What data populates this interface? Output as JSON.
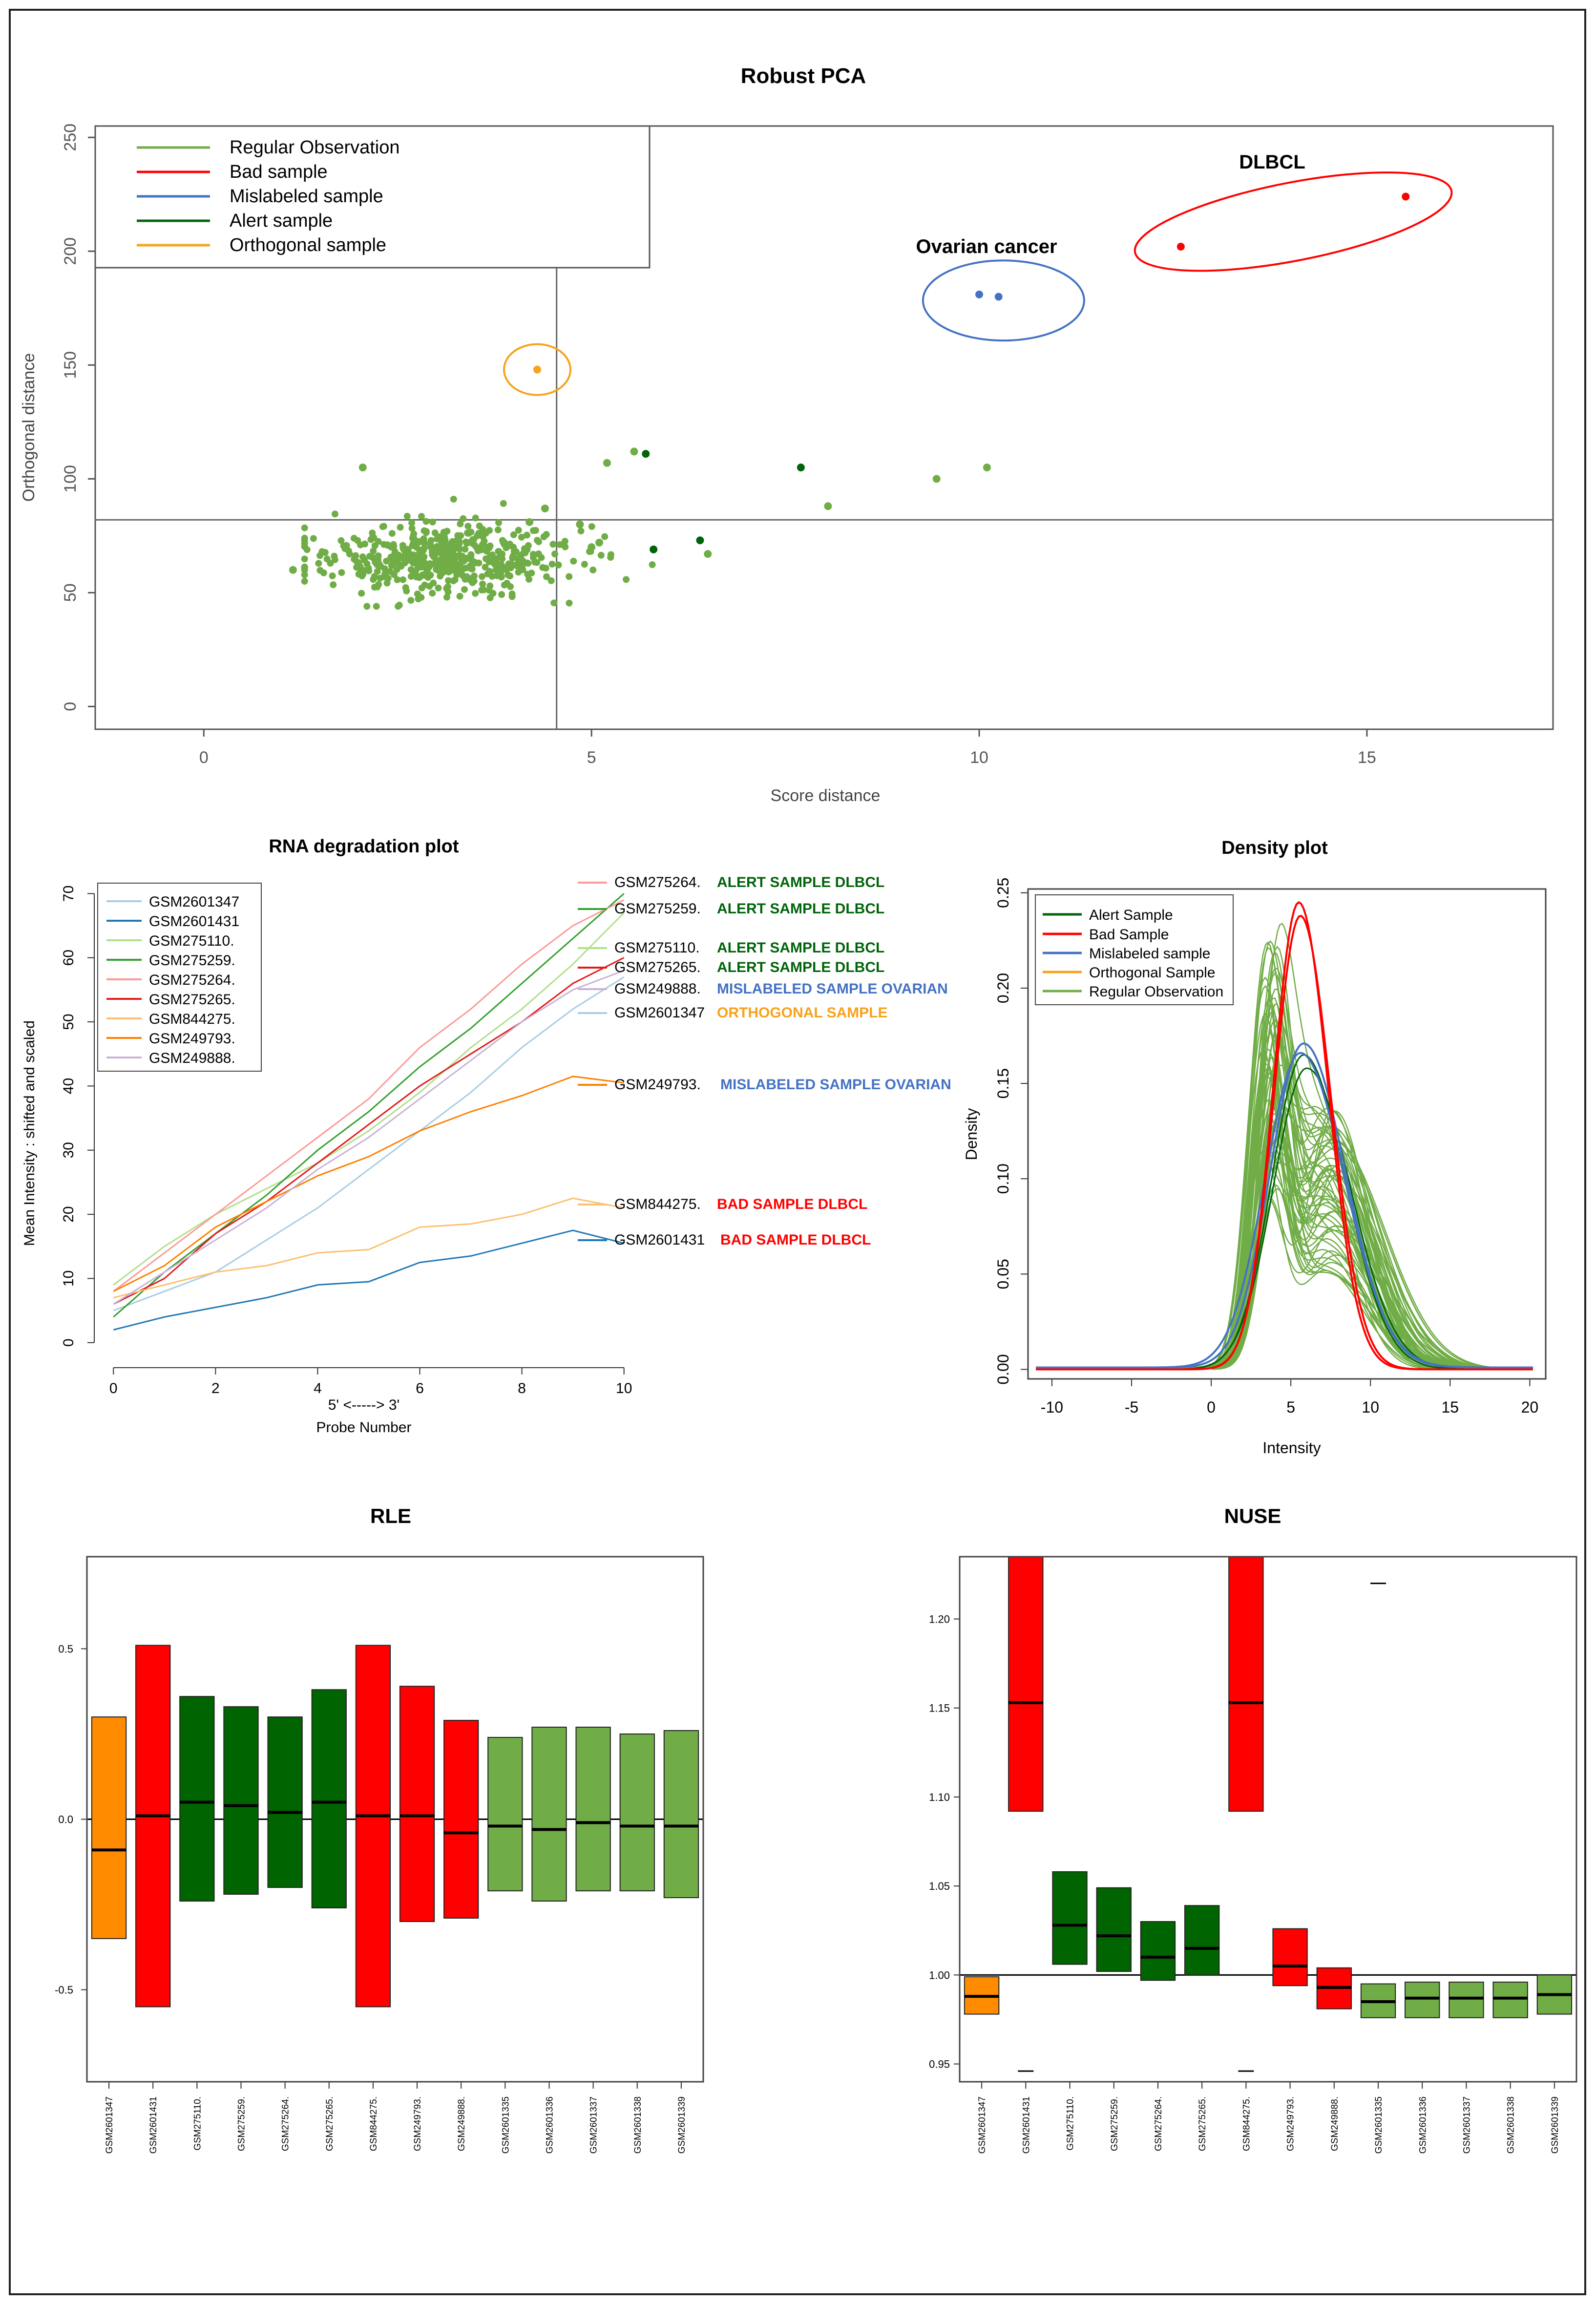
{
  "chart_data": [
    {
      "type": "scatter",
      "id": "pca",
      "title": "Robust PCA",
      "xlabel": "Score distance",
      "ylabel": "Orthogonal distance",
      "xlim": [
        -1.4,
        17.4
      ],
      "ylim": [
        -10,
        255
      ],
      "xticks": [
        0,
        5,
        10,
        15
      ],
      "yticks": [
        0,
        50,
        100,
        150,
        200,
        250
      ],
      "cutoff_x": 4.55,
      "cutoff_y": 82,
      "colors": {
        "regular": "#70ad47",
        "bad": "#ff0000",
        "mislabeled": "#4472c4",
        "alert": "#00640a",
        "orthogonal": "#f7a21b"
      },
      "legend": [
        "Regular Observation",
        "Bad sample",
        "Mislabeled sample",
        "Alert sample",
        "Orthogonal sample"
      ],
      "annotations": [
        "DLBCL",
        "Ovarian cancer"
      ],
      "bad_points": [
        [
          12.6,
          202
        ],
        [
          15.5,
          224
        ]
      ],
      "mislabeled_points": [
        [
          10.0,
          181
        ],
        [
          10.25,
          180
        ]
      ],
      "orthogonal_points": [
        [
          4.3,
          148
        ]
      ],
      "alert_points": [
        [
          5.7,
          111
        ],
        [
          7.7,
          105
        ],
        [
          5.8,
          69
        ],
        [
          6.4,
          73
        ]
      ],
      "regular_outliers": [
        [
          5.55,
          112
        ],
        [
          5.2,
          107
        ],
        [
          9.45,
          100
        ],
        [
          10.1,
          105
        ],
        [
          8.05,
          88
        ],
        [
          6.5,
          67
        ],
        [
          5.1,
          72
        ],
        [
          4.2,
          81
        ],
        [
          2.05,
          105
        ],
        [
          1.15,
          60
        ],
        [
          4.4,
          87
        ],
        [
          4.85,
          80
        ],
        [
          5.0,
          70
        ]
      ],
      "regular_cluster": {
        "center": [
          3.0,
          65
        ],
        "spread": [
          0.85,
          9
        ],
        "count": 520
      }
    },
    {
      "type": "line",
      "id": "rna",
      "title": "RNA degradation plot",
      "xlabel": "5' <-----> 3'\nProbe Number",
      "ylabel": "Mean Intensity : shifted and scaled",
      "xlim": [
        -0.5,
        10.5
      ],
      "ylim": [
        -2,
        73
      ],
      "xticks": [
        0,
        2,
        4,
        6,
        8,
        10
      ],
      "yticks": [
        0,
        10,
        20,
        30,
        40,
        50,
        60,
        70
      ],
      "x": [
        0,
        1,
        2,
        3,
        4,
        5,
        6,
        7,
        8,
        9,
        10
      ],
      "series": [
        {
          "name": "GSM2601347",
          "color": "#a6cee3",
          "values": [
            5,
            8,
            11,
            16,
            21,
            27,
            33,
            39,
            46,
            52,
            57
          ]
        },
        {
          "name": "GSM2601431",
          "color": "#1f78b4",
          "values": [
            2,
            4,
            5.5,
            7,
            9,
            9.5,
            12.5,
            13.5,
            15.5,
            17.5,
            15.5
          ]
        },
        {
          "name": "GSM275110.",
          "color": "#b2df8a",
          "values": [
            9,
            15,
            20,
            24,
            28,
            33,
            39,
            46,
            52,
            59,
            67
          ]
        },
        {
          "name": "GSM275259.",
          "color": "#33a02c",
          "values": [
            4,
            11,
            17,
            23,
            30,
            36,
            43,
            49,
            56,
            63,
            70
          ]
        },
        {
          "name": "GSM275264.",
          "color": "#fb9a99",
          "values": [
            8,
            14,
            20,
            26,
            32,
            38,
            46,
            52,
            59,
            65,
            69
          ]
        },
        {
          "name": "GSM275265.",
          "color": "#e31a1c",
          "values": [
            6,
            10,
            17,
            22,
            28,
            34,
            40,
            45,
            50,
            56,
            60
          ]
        },
        {
          "name": "GSM844275.",
          "color": "#fdbf6f",
          "values": [
            7,
            9,
            11,
            12,
            14,
            14.5,
            18,
            18.5,
            20,
            22.5,
            21
          ]
        },
        {
          "name": "GSM249793.",
          "color": "#ff7f00",
          "values": [
            8,
            12,
            18,
            22,
            26,
            29,
            33,
            36,
            38.5,
            41.5,
            40.5
          ]
        },
        {
          "name": "GSM249888.",
          "color": "#cab2d6",
          "values": [
            6,
            11,
            16,
            21,
            27,
            32,
            38,
            44,
            50,
            55,
            58
          ]
        }
      ],
      "annotations": [
        {
          "sample": "GSM275264.",
          "label": "ALERT SAMPLE DLBCL",
          "color": "#fb9a99",
          "label_color": "#00640a"
        },
        {
          "sample": "GSM275259.",
          "label": "ALERT SAMPLE DLBCL",
          "color": "#33a02c",
          "label_color": "#00640a"
        },
        {
          "sample": "GSM275110.",
          "label": "ALERT SAMPLE DLBCL",
          "color": "#b2df8a",
          "label_color": "#00640a"
        },
        {
          "sample": "GSM275265.",
          "label": "ALERT SAMPLE DLBCL",
          "color": "#e31a1c",
          "label_color": "#00640a"
        },
        {
          "sample": "GSM249888.",
          "label": "MISLABELED SAMPLE OVARIAN",
          "color": "#cab2d6",
          "label_color": "#4472c4"
        },
        {
          "sample": "GSM2601347",
          "label": "ORTHOGONAL SAMPLE",
          "color": "#a6cee3",
          "label_color": "#f7a21b"
        },
        {
          "sample": "GSM249793.",
          "label": "MISLABELED SAMPLE OVARIAN",
          "color": "#ff7f00",
          "label_color": "#4472c4"
        },
        {
          "sample": "GSM844275.",
          "label": "BAD SAMPLE DLBCL",
          "color": "#fdbf6f",
          "label_color": "#ff0000"
        },
        {
          "sample": "GSM2601431",
          "label": "BAD SAMPLE DLBCL",
          "color": "#1f78b4",
          "label_color": "#ff0000"
        }
      ]
    },
    {
      "type": "line",
      "id": "density",
      "title": "Density plot",
      "xlabel": "Intensity",
      "ylabel": "Density",
      "xlim": [
        -11.5,
        21
      ],
      "ylim": [
        -0.005,
        0.252
      ],
      "xticks": [
        -10,
        -5,
        0,
        5,
        10,
        15,
        20
      ],
      "yticks": [
        0.0,
        0.05,
        0.1,
        0.15,
        0.2,
        0.25
      ],
      "ytick_labels": [
        "0.00",
        "0.05",
        "0.10",
        "0.15",
        "0.20",
        "0.25"
      ],
      "legend": [
        {
          "label": "Alert Sample",
          "color": "#00640a"
        },
        {
          "label": "Bad Sample",
          "color": "#ff0000"
        },
        {
          "label": "Mislabeled sample",
          "color": "#4472c4"
        },
        {
          "label": "Orthogonal Sample",
          "color": "#f7a21b"
        },
        {
          "label": "Regular Observation",
          "color": "#70ad47"
        }
      ],
      "bad_curves": [
        {
          "peak_x": 5.5,
          "peak_y": 0.245,
          "sd": 1.6
        },
        {
          "peak_x": 5.6,
          "peak_y": 0.238,
          "sd": 1.65
        }
      ],
      "mislabeled_curves": [
        {
          "peak_x": 5.8,
          "peak_y": 0.17,
          "sd": 2.1
        },
        {
          "peak_x": 5.6,
          "peak_y": 0.165,
          "sd": 2.2
        }
      ],
      "alert_curves": [
        {
          "peak_x": 5.8,
          "peak_y": 0.165,
          "sd": 2.0
        },
        {
          "peak_x": 6.0,
          "peak_y": 0.158,
          "sd": 2.1
        }
      ],
      "regular_curve_count": 60
    },
    {
      "type": "box",
      "id": "rle",
      "title": "RLE",
      "ylim": [
        -0.77,
        0.77
      ],
      "yticks": [
        -0.5,
        0.0,
        0.5
      ],
      "ytick_labels": [
        "-0.5",
        "0.0",
        "0.5"
      ],
      "reference_line": 0.0,
      "categories": [
        "GSM2601347",
        "GSM2601431",
        "GSM275110.",
        "GSM275259.",
        "GSM275264.",
        "GSM275265.",
        "GSM844275.",
        "GSM249793.",
        "GSM249888.",
        "GSM2601335",
        "GSM2601336",
        "GSM2601337",
        "GSM2601338",
        "GSM2601339"
      ],
      "colors": [
        "#ff8c00",
        "#ff0000",
        "#006400",
        "#006400",
        "#006400",
        "#006400",
        "#ff0000",
        "#ff0000",
        "#ff0000",
        "#70ad47",
        "#70ad47",
        "#70ad47",
        "#70ad47",
        "#70ad47"
      ],
      "lower": [
        -0.35,
        -0.55,
        -0.24,
        -0.22,
        -0.2,
        -0.26,
        -0.55,
        -0.3,
        -0.29,
        -0.21,
        -0.24,
        -0.21,
        -0.21,
        -0.23
      ],
      "median": [
        -0.09,
        0.01,
        0.05,
        0.04,
        0.02,
        0.05,
        0.01,
        0.01,
        -0.04,
        -0.02,
        -0.03,
        -0.01,
        -0.02,
        -0.02
      ],
      "upper": [
        0.3,
        0.51,
        0.36,
        0.33,
        0.3,
        0.38,
        0.51,
        0.39,
        0.29,
        0.24,
        0.27,
        0.27,
        0.25,
        0.26
      ]
    },
    {
      "type": "box",
      "id": "nuse",
      "title": "NUSE",
      "ylim": [
        0.94,
        1.235
      ],
      "yticks": [
        0.95,
        1.0,
        1.05,
        1.1,
        1.15,
        1.2
      ],
      "ytick_labels": [
        "0.95",
        "1.00",
        "1.05",
        "1.10",
        "1.15",
        "1.20"
      ],
      "reference_line": 1.0,
      "categories": [
        "GSM2601347",
        "GSM2601431",
        "GSM275110.",
        "GSM275259.",
        "GSM275264.",
        "GSM275265.",
        "GSM844275.",
        "GSM249793.",
        "GSM249888.",
        "GSM2601335",
        "GSM2601336",
        "GSM2601337",
        "GSM2601338",
        "GSM2601339"
      ],
      "colors": [
        "#ff8c00",
        "#ff0000",
        "#006400",
        "#006400",
        "#006400",
        "#006400",
        "#ff0000",
        "#ff0000",
        "#ff0000",
        "#70ad47",
        "#70ad47",
        "#70ad47",
        "#70ad47",
        "#70ad47"
      ],
      "lower": [
        0.978,
        1.092,
        1.006,
        1.002,
        0.997,
        1.0,
        1.092,
        0.994,
        0.981,
        0.976,
        0.976,
        0.976,
        0.976,
        0.978
      ],
      "median": [
        0.988,
        1.153,
        1.028,
        1.022,
        1.01,
        1.015,
        1.153,
        1.005,
        0.993,
        0.985,
        0.987,
        0.987,
        0.987,
        0.989
      ],
      "upper": [
        0.999,
        1.235,
        1.058,
        1.049,
        1.03,
        1.039,
        1.235,
        1.026,
        1.004,
        0.995,
        0.996,
        0.996,
        0.996,
        1.0
      ],
      "outliers": [
        [
          1,
          0.946
        ],
        [
          6,
          0.946
        ],
        [
          9,
          1.22
        ]
      ]
    }
  ]
}
